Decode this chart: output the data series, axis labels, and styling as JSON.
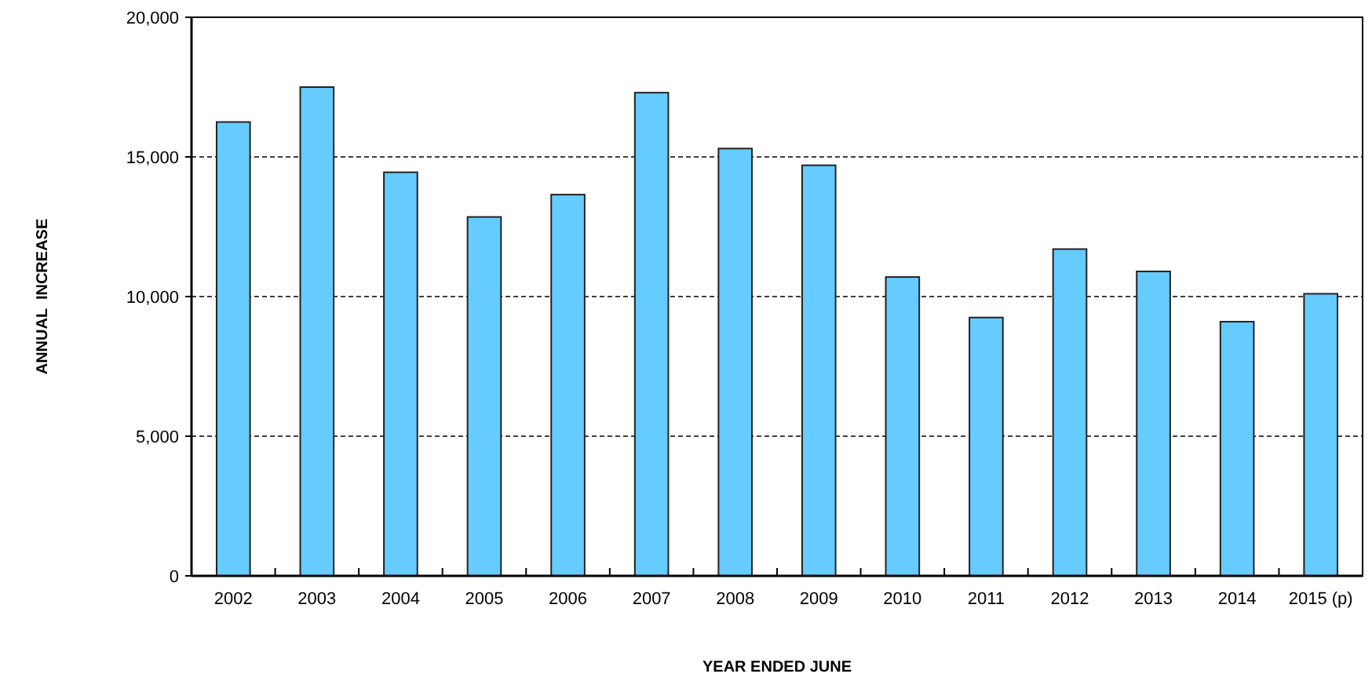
{
  "chart_data": {
    "type": "bar",
    "xlabel": "YEAR ENDED JUNE",
    "ylabel": "ANNUAL  INCREASE",
    "categories": [
      "2002",
      "2003",
      "2004",
      "2005",
      "2006",
      "2007",
      "2008",
      "2009",
      "2010",
      "2011",
      "2012",
      "2013",
      "2014",
      "2015 (p)"
    ],
    "values": [
      16250,
      17500,
      14450,
      12850,
      13650,
      17300,
      15300,
      14700,
      10700,
      9250,
      11700,
      10900,
      9100,
      10100
    ],
    "color": "#66ccff",
    "ylim": [
      0,
      20000
    ],
    "yticks": [
      {
        "value": 0,
        "label": "0"
      },
      {
        "value": 5000,
        "label": "5,000"
      },
      {
        "value": 10000,
        "label": "10,000"
      },
      {
        "value": 15000,
        "label": "15,000"
      },
      {
        "value": 20000,
        "label": "20,000"
      }
    ],
    "grid": "y"
  }
}
